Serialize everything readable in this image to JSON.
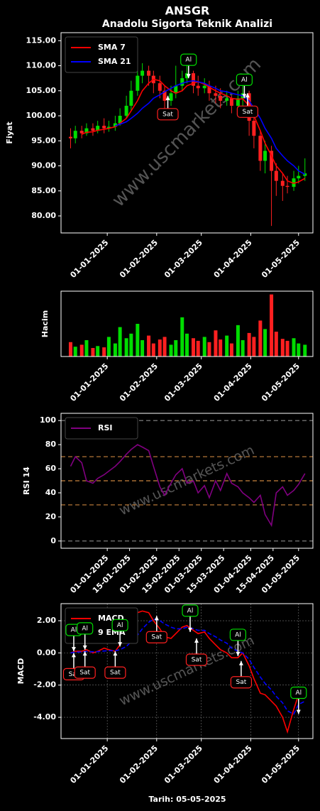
{
  "chart_data": [
    {
      "type": "candlestick",
      "title": "ANSGR",
      "subtitle": "Anadolu Sigorta Teknik Analizi",
      "y_label": "Fiyat",
      "x": [
        "09-12-2024",
        "12-12-2024",
        "16-12-2024",
        "19-12-2024",
        "23-12-2024",
        "26-12-2024",
        "30-12-2024",
        "02-01-2025",
        "06-01-2025",
        "09-01-2025",
        "13-01-2025",
        "16-01-2025",
        "20-01-2025",
        "23-01-2025",
        "27-01-2025",
        "30-01-2025",
        "03-02-2025",
        "06-02-2025",
        "10-02-2025",
        "13-02-2025",
        "17-02-2025",
        "20-02-2025",
        "24-02-2025",
        "27-02-2025",
        "03-03-2025",
        "06-03-2025",
        "10-03-2025",
        "13-03-2025",
        "17-03-2025",
        "20-03-2025",
        "24-03-2025",
        "27-03-2025",
        "31-03-2025",
        "03-04-2025",
        "07-04-2025",
        "10-04-2025",
        "14-04-2025",
        "17-04-2025",
        "21-04-2025",
        "24-04-2025",
        "28-04-2025",
        "01-05-2025",
        "05-05-2025"
      ],
      "open": [
        95.8,
        95.5,
        97,
        96.5,
        97.5,
        97,
        98,
        97.5,
        97.8,
        98.5,
        100,
        102,
        105,
        108,
        109,
        108,
        106.5,
        105,
        103,
        104.5,
        106,
        107.5,
        108.5,
        106,
        105.5,
        106,
        104.5,
        104,
        103,
        103.5,
        102,
        103.5,
        104.5,
        99,
        96,
        91,
        93,
        89,
        87,
        86,
        85.8,
        87.5,
        88
      ],
      "high": [
        97.5,
        98,
        98,
        98.5,
        98.5,
        99,
        99.5,
        99,
        100,
        101.5,
        104,
        107,
        110,
        110.5,
        110,
        109,
        108,
        106,
        106,
        110,
        109,
        110.5,
        109,
        108,
        107.5,
        107,
        106,
        105.5,
        105,
        104,
        105,
        106,
        105,
        100,
        97,
        95,
        94,
        90.5,
        88.5,
        88,
        89,
        90,
        91.5
      ],
      "low": [
        93.5,
        94.5,
        95.5,
        96,
        96,
        96.5,
        96.5,
        96.8,
        97,
        98,
        99.5,
        101,
        104,
        106.5,
        106,
        104.5,
        103.5,
        101.5,
        102,
        103.5,
        105,
        106.5,
        104.5,
        104,
        104.5,
        103,
        102.5,
        101.5,
        102,
        100.5,
        101.5,
        100,
        96,
        93.5,
        89,
        88.5,
        78,
        84,
        83,
        84.5,
        85,
        86.5,
        87
      ],
      "close": [
        95.5,
        97,
        96.5,
        97.5,
        97,
        98,
        97.5,
        97.8,
        98.5,
        100,
        102,
        105,
        108,
        109,
        108,
        106.5,
        105,
        103,
        104.5,
        106,
        107.5,
        108.5,
        106,
        105.5,
        106,
        104.5,
        104,
        103,
        103.5,
        102,
        103.5,
        104.5,
        99,
        96,
        91,
        93,
        89,
        87,
        86,
        85.8,
        87.5,
        88,
        88.5
      ],
      "up_color": "#00dd00",
      "down_color": "#ff2020",
      "series": [
        {
          "name": "SMA 7",
          "color": "#ff0000",
          "values": [
            null,
            null,
            96.3,
            96.7,
            96.8,
            97.1,
            97.3,
            97.5,
            97.8,
            98.5,
            99.5,
            101,
            103,
            105,
            106.5,
            107.3,
            107,
            106,
            105,
            104.5,
            105,
            106,
            106.5,
            106.8,
            106.3,
            105.7,
            105,
            104.5,
            104,
            103.5,
            103.3,
            103.4,
            102,
            100,
            97,
            94.5,
            92,
            90,
            88.5,
            87,
            86.5,
            86.8,
            87.5
          ]
        },
        {
          "name": "SMA 21",
          "color": "#0000ff",
          "values": [
            null,
            null,
            null,
            null,
            null,
            null,
            null,
            null,
            98,
            98.3,
            98.8,
            99.5,
            100.5,
            101.5,
            102.5,
            103.5,
            104.2,
            104.8,
            105.5,
            106,
            106.5,
            106.8,
            107,
            106.8,
            106.5,
            106,
            105.5,
            105,
            104.8,
            104.5,
            104.2,
            104,
            103,
            101.5,
            99.5,
            97.5,
            95.5,
            93.5,
            92,
            91,
            90,
            89,
            88.3
          ]
        }
      ],
      "xlim": [
        "03-12-2024",
        "10-05-2025"
      ],
      "xticks": [
        "01-01-2025",
        "01-02-2025",
        "01-03-2025",
        "01-04-2025",
        "01-05-2025"
      ],
      "ylim": [
        76.6,
        116.6
      ],
      "yticks": [
        {
          "value": 80,
          "label": "80.00"
        },
        {
          "value": 85,
          "label": "85.00"
        },
        {
          "value": 90,
          "label": "90.00"
        },
        {
          "value": 95,
          "label": "95.00"
        },
        {
          "value": 100,
          "label": "100.00"
        },
        {
          "value": 105,
          "label": "105.00"
        },
        {
          "value": 110,
          "label": "110.00"
        },
        {
          "value": 115,
          "label": "115.00"
        }
      ],
      "legend": "upper left",
      "watermark": "www.uscmarkets.com",
      "annotations": [
        {
          "text": "Sat",
          "x": "08-02-2025",
          "y": 104,
          "color": "#ff2020"
        },
        {
          "text": "Al",
          "x": "21-02-2025",
          "y": 107.5,
          "color": "#00dd00"
        },
        {
          "text": "Al",
          "x": "28-03-2025",
          "y": 103.5,
          "color": "#00dd00"
        },
        {
          "text": "Sat",
          "x": "30-03-2025",
          "y": 104.5,
          "color": "#ff2020"
        }
      ]
    },
    {
      "type": "bar",
      "y_label": "Hacim",
      "x": [
        "09-12-2024",
        "12-12-2024",
        "16-12-2024",
        "19-12-2024",
        "23-12-2024",
        "26-12-2024",
        "30-12-2024",
        "02-01-2025",
        "06-01-2025",
        "09-01-2025",
        "13-01-2025",
        "16-01-2025",
        "20-01-2025",
        "23-01-2025",
        "27-01-2025",
        "30-01-2025",
        "03-02-2025",
        "06-02-2025",
        "10-02-2025",
        "13-02-2025",
        "17-02-2025",
        "20-02-2025",
        "24-02-2025",
        "27-02-2025",
        "03-03-2025",
        "06-03-2025",
        "10-03-2025",
        "13-03-2025",
        "17-03-2025",
        "20-03-2025",
        "24-03-2025",
        "27-03-2025",
        "31-03-2025",
        "03-04-2025",
        "07-04-2025",
        "10-04-2025",
        "14-04-2025",
        "17-04-2025",
        "21-04-2025",
        "24-04-2025",
        "28-04-2025",
        "01-05-2025",
        "05-05-2025"
      ],
      "values": [
        2.2,
        1.5,
        1.8,
        2.5,
        1.3,
        1.6,
        1.4,
        3.0,
        2.0,
        4.5,
        2.8,
        3.5,
        5.0,
        2.5,
        3.2,
        2.0,
        2.6,
        3.0,
        1.8,
        2.5,
        6.0,
        3.5,
        2.8,
        2.4,
        3.0,
        2.2,
        4.0,
        2.6,
        3.2,
        2.0,
        4.8,
        2.5,
        3.6,
        3.0,
        5.5,
        4.2,
        9.5,
        3.8,
        2.7,
        2.4,
        2.8,
        2.0,
        1.8
      ],
      "colors": [
        "#ff2020",
        "#00dd00",
        "#ff2020",
        "#00dd00",
        "#ff2020",
        "#00dd00",
        "#ff2020",
        "#00dd00",
        "#00dd00",
        "#00dd00",
        "#00dd00",
        "#00dd00",
        "#00dd00",
        "#00dd00",
        "#ff2020",
        "#ff2020",
        "#ff2020",
        "#ff2020",
        "#00dd00",
        "#00dd00",
        "#00dd00",
        "#00dd00",
        "#ff2020",
        "#ff2020",
        "#00dd00",
        "#ff2020",
        "#ff2020",
        "#ff2020",
        "#00dd00",
        "#ff2020",
        "#00dd00",
        "#00dd00",
        "#ff2020",
        "#ff2020",
        "#ff2020",
        "#00dd00",
        "#ff2020",
        "#ff2020",
        "#ff2020",
        "#ff2020",
        "#00dd00",
        "#00dd00",
        "#00dd00"
      ],
      "xlim": [
        "03-12-2024",
        "10-05-2025"
      ],
      "xticks": [
        "01-01-2025",
        "01-02-2025",
        "01-03-2025",
        "01-04-2025",
        "01-05-2025"
      ],
      "ylim": [
        0,
        10
      ]
    },
    {
      "type": "line",
      "y_label": "RSI 14",
      "x": [
        "09-12-2024",
        "12-12-2024",
        "16-12-2024",
        "19-12-2024",
        "23-12-2024",
        "26-12-2024",
        "30-12-2024",
        "02-01-2025",
        "06-01-2025",
        "09-01-2025",
        "13-01-2025",
        "16-01-2025",
        "20-01-2025",
        "23-01-2025",
        "27-01-2025",
        "30-01-2025",
        "03-02-2025",
        "06-02-2025",
        "10-02-2025",
        "13-02-2025",
        "17-02-2025",
        "20-02-2025",
        "24-02-2025",
        "27-02-2025",
        "03-03-2025",
        "06-03-2025",
        "10-03-2025",
        "13-03-2025",
        "17-03-2025",
        "20-03-2025",
        "24-03-2025",
        "27-03-2025",
        "31-03-2025",
        "03-04-2025",
        "07-04-2025",
        "10-04-2025",
        "14-04-2025",
        "17-04-2025",
        "21-04-2025",
        "24-04-2025",
        "28-04-2025",
        "01-05-2025",
        "05-05-2025"
      ],
      "series": [
        {
          "name": "RSI",
          "color": "#800080",
          "values": [
            62,
            70,
            65,
            50,
            48,
            52,
            55,
            58,
            62,
            66,
            72,
            76,
            80,
            78,
            75,
            62,
            45,
            38,
            48,
            55,
            60,
            48,
            50,
            40,
            46,
            36,
            50,
            42,
            56,
            48,
            45,
            40,
            36,
            32,
            38,
            22,
            13,
            40,
            45,
            38,
            42,
            47,
            56
          ]
        }
      ],
      "hlines": [
        {
          "value": 0,
          "color": "#888888"
        },
        {
          "value": 30,
          "color": "#c8823c"
        },
        {
          "value": 50,
          "color": "#c8823c"
        },
        {
          "value": 70,
          "color": "#c8823c"
        },
        {
          "value": 100,
          "color": "#888888"
        }
      ],
      "xlim": [
        "03-12-2024",
        "10-05-2025"
      ],
      "xticks": [
        "01-01-2025",
        "15-01-2025",
        "01-02-2025",
        "15-02-2025",
        "01-03-2025",
        "15-03-2025",
        "01-04-2025",
        "15-04-2025",
        "01-05-2025"
      ],
      "ylim": [
        -6,
        106
      ],
      "yticks": [
        0,
        20,
        40,
        60,
        80,
        100
      ],
      "legend": "upper left",
      "watermark": "www.uscmarkets.com"
    },
    {
      "type": "line",
      "y_label": "MACD",
      "x_label": "Tarih: 05-05-2025",
      "x": [
        "09-12-2024",
        "12-12-2024",
        "16-12-2024",
        "19-12-2024",
        "23-12-2024",
        "26-12-2024",
        "30-12-2024",
        "02-01-2025",
        "06-01-2025",
        "09-01-2025",
        "13-01-2025",
        "16-01-2025",
        "20-01-2025",
        "23-01-2025",
        "27-01-2025",
        "30-01-2025",
        "03-02-2025",
        "06-02-2025",
        "10-02-2025",
        "13-02-2025",
        "17-02-2025",
        "20-02-2025",
        "24-02-2025",
        "27-02-2025",
        "03-03-2025",
        "06-03-2025",
        "10-03-2025",
        "13-03-2025",
        "17-03-2025",
        "20-03-2025",
        "24-03-2025",
        "27-03-2025",
        "31-03-2025",
        "03-04-2025",
        "07-04-2025",
        "10-04-2025",
        "14-04-2025",
        "17-04-2025",
        "21-04-2025",
        "24-04-2025",
        "28-04-2025",
        "01-05-2025",
        "05-05-2025"
      ],
      "series": [
        {
          "name": "MACD",
          "color": "#ff0000",
          "values": [
            0,
            0.1,
            0.1,
            0.2,
            0,
            0.1,
            0.3,
            0.2,
            0.1,
            0.5,
            1.2,
            2.0,
            2.5,
            2.6,
            2.5,
            2.0,
            1.5,
            1.0,
            0.9,
            1.2,
            1.6,
            1.7,
            1.4,
            1.2,
            1.3,
            0.9,
            0.5,
            0.2,
            0,
            -0.3,
            -0.3,
            0,
            -0.8,
            -1.6,
            -2.5,
            -2.6,
            -3.0,
            -3.3,
            -4.0,
            -4.9,
            -3.5,
            -2.6,
            -2.2
          ]
        },
        {
          "name": "9 EMA",
          "color": "#0000ff",
          "dash": true,
          "values": [
            0,
            0.05,
            0.06,
            0.09,
            0.07,
            0.08,
            0.12,
            0.14,
            0.13,
            0.2,
            0.4,
            0.7,
            1.1,
            1.5,
            1.9,
            2.1,
            2.0,
            1.8,
            1.6,
            1.5,
            1.5,
            1.6,
            1.5,
            1.4,
            1.4,
            1.2,
            1.0,
            0.8,
            0.6,
            0.3,
            0.1,
            0,
            -0.4,
            -0.9,
            -1.5,
            -1.9,
            -2.3,
            -2.7,
            -3.1,
            -3.6,
            -3.8,
            -3.2,
            -3.0
          ]
        }
      ],
      "xlim": [
        "03-12-2024",
        "10-05-2025"
      ],
      "xticks": [
        "01-01-2025",
        "01-02-2025",
        "01-03-2025",
        "01-04-2025",
        "01-05-2025"
      ],
      "ylim": [
        -5.32,
        3.06
      ],
      "yticks": [
        {
          "value": -4,
          "label": "-4.00"
        },
        {
          "value": -2,
          "label": "-2.00"
        },
        {
          "value": 0,
          "label": "0.00"
        },
        {
          "value": 2,
          "label": "2.00"
        }
      ],
      "grid": true,
      "legend": "upper left",
      "watermark": "www.uscmarkets.com",
      "annotations": [
        {
          "text": "Al",
          "x": "11-12-2024",
          "y": 0.1,
          "color": "#00dd00"
        },
        {
          "text": "Sat",
          "x": "11-12-2024",
          "y": 0,
          "color": "#ff2020"
        },
        {
          "text": "Al",
          "x": "18-12-2024",
          "y": 0.2,
          "color": "#00dd00"
        },
        {
          "text": "Sat",
          "x": "18-12-2024",
          "y": 0.1,
          "color": "#ff2020"
        },
        {
          "text": "Sat",
          "x": "06-01-2025",
          "y": 0.1,
          "color": "#ff2020"
        },
        {
          "text": "Al",
          "x": "09-01-2025",
          "y": 0.4,
          "color": "#00dd00"
        },
        {
          "text": "Sat",
          "x": "01-02-2025",
          "y": 2.3,
          "color": "#ff2020"
        },
        {
          "text": "Al",
          "x": "22-02-2025",
          "y": 1.3,
          "color": "#00dd00"
        },
        {
          "text": "Sat",
          "x": "26-02-2025",
          "y": 0.9,
          "color": "#ff2020"
        },
        {
          "text": "Al",
          "x": "24-03-2025",
          "y": -0.2,
          "color": "#00dd00"
        },
        {
          "text": "Sat",
          "x": "26-03-2025",
          "y": -0.5,
          "color": "#ff2020"
        },
        {
          "text": "Al",
          "x": "01-05-2025",
          "y": -3.8,
          "color": "#00dd00"
        }
      ]
    }
  ]
}
